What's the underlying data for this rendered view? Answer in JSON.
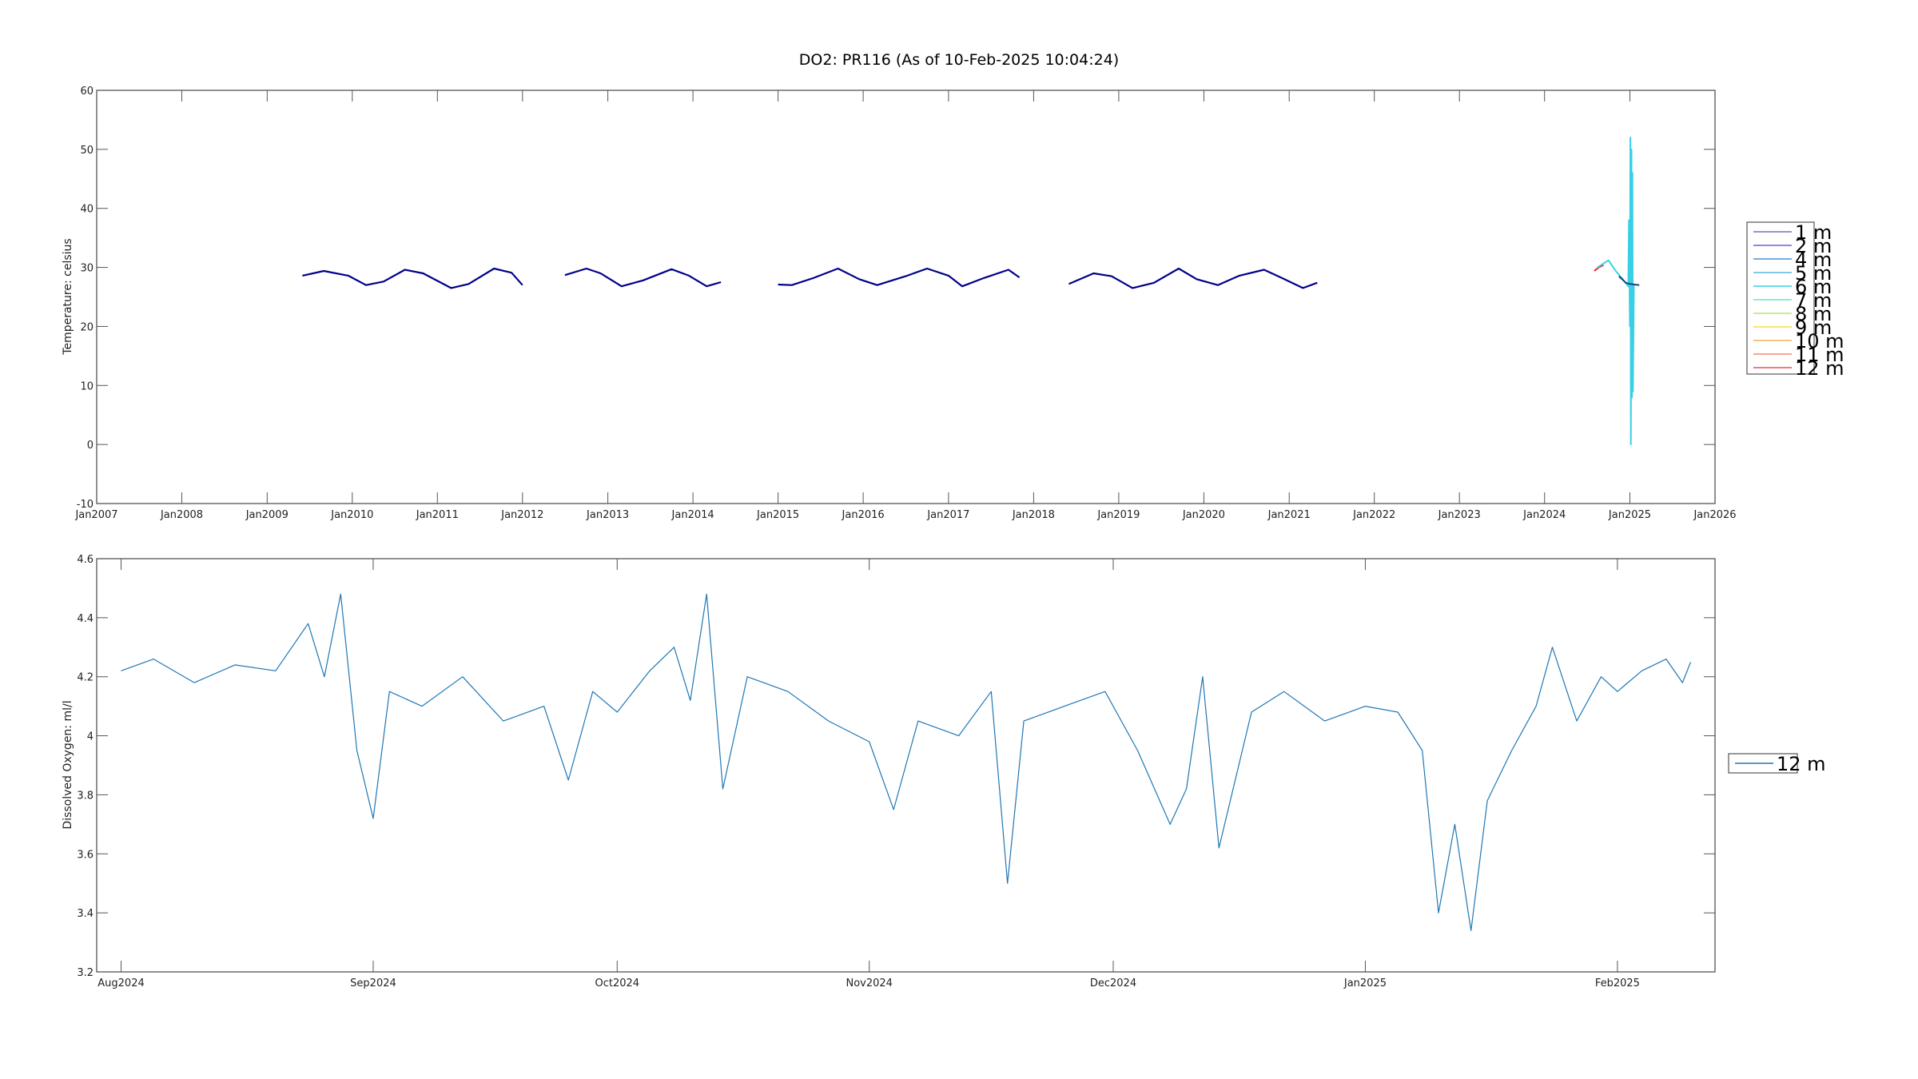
{
  "figure_title": "DO2: PR116 (As of 10-Feb-2025 10:04:24)",
  "chart_data": [
    {
      "type": "line",
      "title": "DO2: PR116 (As of 10-Feb-2025 10:04:24)",
      "xlabel": "",
      "ylabel": "Temperature:  celsius",
      "xlim": [
        "2007-01-01",
        "2026-01-01"
      ],
      "ylim": [
        -10,
        60
      ],
      "grid": false,
      "x_tick_labels": [
        "Jan2007",
        "Jan2008",
        "Jan2009",
        "Jan2010",
        "Jan2011",
        "Jan2012",
        "Jan2013",
        "Jan2014",
        "Jan2015",
        "Jan2016",
        "Jan2017",
        "Jan2018",
        "Jan2019",
        "Jan2020",
        "Jan2021",
        "Jan2022",
        "Jan2023",
        "Jan2024",
        "Jan2025",
        "Jan2026"
      ],
      "y_tick_labels": [
        "-10",
        "0",
        "10",
        "20",
        "30",
        "40",
        "50",
        "60"
      ],
      "legend_position": "outside-right",
      "legend": [
        {
          "name": "1 m",
          "color": "#7b68c8"
        },
        {
          "name": "2 m",
          "color": "#6a5fe0"
        },
        {
          "name": "4 m",
          "color": "#4a90d9"
        },
        {
          "name": "5 m",
          "color": "#55b8e6"
        },
        {
          "name": "6 m",
          "color": "#39d0e6"
        },
        {
          "name": "7 m",
          "color": "#6fe3c4"
        },
        {
          "name": "8 m",
          "color": "#b7e86a"
        },
        {
          "name": "9 m",
          "color": "#f0e040"
        },
        {
          "name": "10 m",
          "color": "#f4b45c"
        },
        {
          "name": "11 m",
          "color": "#f08a6c"
        },
        {
          "name": "12 m",
          "color": "#e8505a"
        }
      ],
      "series": [
        {
          "name": "1 m",
          "color": "#00008b",
          "points": [
            [
              "2009-06-01",
              28.6
            ],
            [
              "2009-09-01",
              29.4
            ],
            [
              "2009-12-15",
              28.6
            ],
            [
              "2010-03-01",
              27.0
            ],
            [
              "2010-05-15",
              27.6
            ],
            [
              "2010-08-15",
              29.6
            ],
            [
              "2010-11-01",
              29.0
            ],
            [
              "2011-03-01",
              26.5
            ],
            [
              "2011-05-15",
              27.2
            ],
            [
              "2011-09-01",
              29.8
            ],
            [
              "2011-11-15",
              29.1
            ],
            [
              "2012-01-01",
              27.0
            ],
            null,
            [
              "2012-07-01",
              28.7
            ],
            [
              "2012-10-01",
              29.8
            ],
            [
              "2012-12-01",
              29.0
            ],
            [
              "2013-03-01",
              26.8
            ],
            [
              "2013-06-01",
              27.8
            ],
            [
              "2013-10-01",
              29.7
            ],
            [
              "2013-12-15",
              28.6
            ],
            [
              "2014-03-01",
              26.8
            ],
            [
              "2014-05-01",
              27.5
            ],
            null,
            [
              "2015-01-01",
              27.1
            ],
            [
              "2015-03-01",
              27.0
            ],
            [
              "2015-06-01",
              28.2
            ],
            [
              "2015-09-15",
              29.8
            ],
            [
              "2015-12-15",
              28.0
            ],
            [
              "2016-03-01",
              27.0
            ],
            [
              "2016-07-01",
              28.5
            ],
            [
              "2016-10-01",
              29.8
            ],
            [
              "2017-01-01",
              28.6
            ],
            [
              "2017-03-01",
              26.8
            ],
            [
              "2017-06-01",
              28.2
            ],
            [
              "2017-09-15",
              29.6
            ],
            [
              "2017-11-01",
              28.3
            ],
            null,
            [
              "2018-06-01",
              27.2
            ],
            [
              "2018-09-15",
              29.0
            ],
            [
              "2018-12-01",
              28.5
            ],
            [
              "2019-03-01",
              26.5
            ],
            [
              "2019-06-01",
              27.4
            ],
            [
              "2019-09-15",
              29.8
            ],
            [
              "2019-12-01",
              28.0
            ],
            [
              "2020-03-01",
              27.0
            ],
            [
              "2020-06-01",
              28.6
            ],
            [
              "2020-09-15",
              29.6
            ],
            [
              "2020-12-01",
              28.2
            ],
            [
              "2021-03-01",
              26.5
            ],
            [
              "2021-05-01",
              27.4
            ]
          ]
        },
        {
          "name": "12 m",
          "color": "#e8202a",
          "points": [
            [
              "2024-08-01",
              29.4
            ],
            [
              "2024-08-20",
              30.0
            ],
            [
              "2024-09-10",
              30.4
            ]
          ]
        },
        {
          "name": "6 m",
          "color": "#39d0e6",
          "points": [
            [
              "2024-08-15",
              30.0
            ],
            [
              "2024-10-01",
              31.2
            ],
            [
              "2024-11-01",
              29.4
            ],
            [
              "2024-12-01",
              28.0
            ],
            [
              "2024-12-25",
              26.8
            ],
            [
              "2024-12-28",
              38.0
            ],
            [
              "2025-01-01",
              20.0
            ],
            [
              "2025-01-03",
              52.0
            ],
            [
              "2025-01-05",
              0.0
            ],
            [
              "2025-01-08",
              50.0
            ],
            [
              "2025-01-10",
              8.0
            ],
            [
              "2025-01-12",
              46.0
            ],
            [
              "2025-01-14",
              9.0
            ],
            [
              "2025-01-18",
              27.0
            ]
          ]
        },
        {
          "name": "12 m",
          "color": "#1f3f6f",
          "points": [
            [
              "2024-11-15",
              28.5
            ],
            [
              "2024-12-15",
              27.4
            ],
            [
              "2025-01-01",
              27.2
            ],
            [
              "2025-02-10",
              27.0
            ]
          ]
        }
      ]
    },
    {
      "type": "line",
      "xlabel": "",
      "ylabel": "Dissolved Oxygen:  ml/l",
      "xlim": [
        "2024-07-29",
        "2025-02-13"
      ],
      "ylim": [
        3.2,
        4.6
      ],
      "grid": false,
      "x_tick_labels": [
        "Aug2024",
        "Sep2024",
        "Oct2024",
        "Nov2024",
        "Dec2024",
        "Jan2025",
        "Feb2025"
      ],
      "y_tick_labels": [
        "3.2",
        "3.4",
        "3.6",
        "3.8",
        "4",
        "4.2",
        "4.4",
        "4.6"
      ],
      "legend_position": "outside-right",
      "legend": [
        {
          "name": "12 m",
          "color": "#1f77b4"
        }
      ],
      "series": [
        {
          "name": "12 m",
          "color": "#1f77b4",
          "points": [
            [
              "2024-08-01",
              4.22
            ],
            [
              "2024-08-05",
              4.26
            ],
            [
              "2024-08-10",
              4.18
            ],
            [
              "2024-08-15",
              4.24
            ],
            [
              "2024-08-20",
              4.22
            ],
            [
              "2024-08-24",
              4.38
            ],
            [
              "2024-08-26",
              4.2
            ],
            [
              "2024-08-28",
              4.48
            ],
            [
              "2024-08-30",
              3.95
            ],
            [
              "2024-09-01",
              3.72
            ],
            [
              "2024-09-03",
              4.15
            ],
            [
              "2024-09-07",
              4.1
            ],
            [
              "2024-09-12",
              4.2
            ],
            [
              "2024-09-17",
              4.05
            ],
            [
              "2024-09-22",
              4.1
            ],
            [
              "2024-09-25",
              3.85
            ],
            [
              "2024-09-28",
              4.15
            ],
            [
              "2024-10-01",
              4.08
            ],
            [
              "2024-10-05",
              4.22
            ],
            [
              "2024-10-08",
              4.3
            ],
            [
              "2024-10-10",
              4.12
            ],
            [
              "2024-10-12",
              4.48
            ],
            [
              "2024-10-14",
              3.82
            ],
            [
              "2024-10-17",
              4.2
            ],
            [
              "2024-10-22",
              4.15
            ],
            [
              "2024-10-27",
              4.05
            ],
            [
              "2024-11-01",
              3.98
            ],
            [
              "2024-11-04",
              3.75
            ],
            [
              "2024-11-07",
              4.05
            ],
            [
              "2024-11-12",
              4.0
            ],
            [
              "2024-11-16",
              4.15
            ],
            [
              "2024-11-18",
              3.5
            ],
            [
              "2024-11-20",
              4.05
            ],
            [
              "2024-11-25",
              4.1
            ],
            [
              "2024-11-30",
              4.15
            ],
            [
              "2024-12-04",
              3.95
            ],
            [
              "2024-12-08",
              3.7
            ],
            [
              "2024-12-10",
              3.82
            ],
            [
              "2024-12-12",
              4.2
            ],
            [
              "2024-12-14",
              3.62
            ],
            [
              "2024-12-18",
              4.08
            ],
            [
              "2024-12-22",
              4.15
            ],
            [
              "2024-12-27",
              4.05
            ],
            [
              "2025-01-01",
              4.1
            ],
            [
              "2025-01-05",
              4.08
            ],
            [
              "2025-01-08",
              3.95
            ],
            [
              "2025-01-10",
              3.4
            ],
            [
              "2025-01-12",
              3.7
            ],
            [
              "2025-01-14",
              3.34
            ],
            [
              "2025-01-16",
              3.78
            ],
            [
              "2025-01-19",
              3.95
            ],
            [
              "2025-01-22",
              4.1
            ],
            [
              "2025-01-24",
              4.3
            ],
            [
              "2025-01-27",
              4.05
            ],
            [
              "2025-01-30",
              4.2
            ],
            [
              "2025-02-01",
              4.15
            ],
            [
              "2025-02-04",
              4.22
            ],
            [
              "2025-02-07",
              4.26
            ],
            [
              "2025-02-09",
              4.18
            ],
            [
              "2025-02-10",
              4.25
            ]
          ]
        }
      ]
    }
  ]
}
